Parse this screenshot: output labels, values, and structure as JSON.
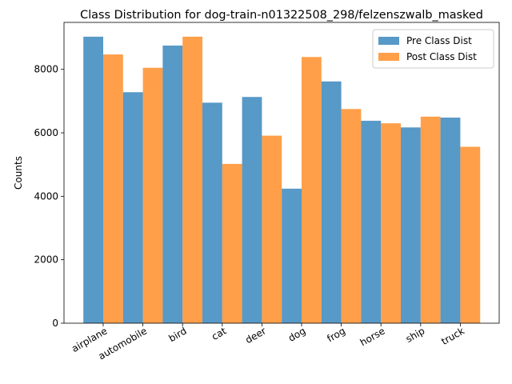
{
  "chart_data": {
    "type": "bar",
    "title": "Class Distribution for dog-train-n01322508_298/felzenszwalb_masked",
    "xlabel": "",
    "ylabel": "Counts",
    "categories": [
      "airplane",
      "automobile",
      "bird",
      "cat",
      "deer",
      "dog",
      "frog",
      "horse",
      "ship",
      "truck"
    ],
    "series": [
      {
        "name": "Pre Class Dist",
        "color": "#1f77b4",
        "values": [
          9030,
          7280,
          8750,
          6950,
          7130,
          4240,
          7620,
          6380,
          6170,
          6480
        ]
      },
      {
        "name": "Post Class Dist",
        "color": "#ff7f0e",
        "values": [
          8470,
          8050,
          9030,
          5020,
          5910,
          8390,
          6750,
          6300,
          6510,
          5560
        ]
      }
    ],
    "ylim": [
      0,
      9480
    ],
    "yticks": [
      0,
      2000,
      4000,
      6000,
      8000
    ],
    "legend_position": "top-right",
    "grid": false,
    "bar_alpha": 0.75,
    "xtick_rotation": 30
  }
}
